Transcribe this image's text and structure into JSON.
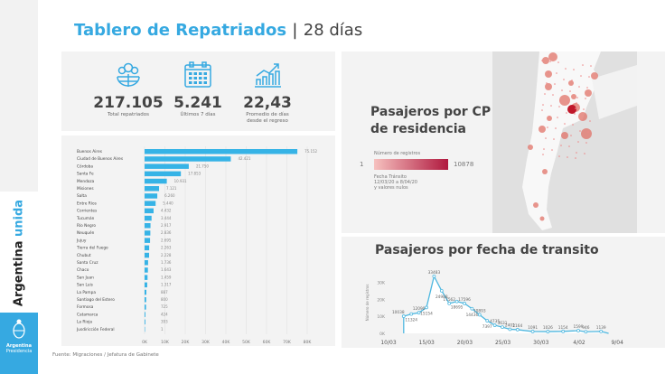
{
  "title": {
    "main": "Tablero de Repatriados",
    "separator": "|",
    "period": "28 días"
  },
  "brand": {
    "word1": "Argentina",
    "word2": "unida",
    "logo_line1": "Argentina",
    "logo_line2": "Presidencia"
  },
  "stats": [
    {
      "icon": "globe-people-icon",
      "value": "217.105",
      "label": "Total repatriados"
    },
    {
      "icon": "calendar-icon",
      "value": "5.241",
      "label": "Últimos 7 días"
    },
    {
      "icon": "growth-chart-icon",
      "value": "22,43",
      "label": "Promedio de días desde el regreso"
    }
  ],
  "map": {
    "title": "Pasajeros por CP de residencia",
    "legend_title": "Número de registros",
    "legend_min": "1",
    "legend_max": "10878",
    "legend_note1": "Fecha Tránsito",
    "legend_note2": "12/03/20 a 8/04/20",
    "legend_note3": "y valores nulos",
    "colors": {
      "low": "#f6c1bf",
      "high": "#b0183e"
    }
  },
  "footer": "Fuente: Migraciones / Jefatura de Gabinete",
  "chart_data": [
    {
      "type": "bar",
      "orientation": "horizontal",
      "color": "#36b3e6",
      "categories": [
        "Buenos Aires",
        "Ciudad de Buenos Aires",
        "Córdoba",
        "Santa Fe",
        "Mendoza",
        "Misiones",
        "Salta",
        "Entre Ríos",
        "Corrientes",
        "Tucumán",
        "Río Negro",
        "Neuquén",
        "Jujuy",
        "Tierra del Fuego",
        "Chubut",
        "Santa Cruz",
        "Chaco",
        "San Juan",
        "San Luis",
        "La Pampa",
        "Santiago del Estero",
        "Formosa",
        "Catamarca",
        "La Rioja",
        "Jusdiricción Federal"
      ],
      "values": [
        75152,
        42421,
        21750,
        17853,
        10931,
        7121,
        6260,
        5440,
        4432,
        3444,
        2917,
        2836,
        2695,
        2263,
        2228,
        1736,
        1643,
        1459,
        1317,
        887,
        800,
        725,
        424,
        393,
        1
      ],
      "labels": [
        "75.152",
        "42.421",
        "21.750",
        "17.853",
        "10.931",
        "7.121",
        "6.260",
        "5.440",
        "4.432",
        "3.444",
        "2.917",
        "2.836",
        "2.695",
        "2.263",
        "2.228",
        "1.736",
        "1.643",
        "1.459",
        "1.317",
        "887",
        "800",
        "725",
        "424",
        "393",
        "1"
      ],
      "xlim": [
        0,
        80000
      ],
      "xticks": [
        "0K",
        "10K",
        "20K",
        "30K",
        "40K",
        "50K",
        "60K",
        "70K",
        "80K"
      ],
      "grid": true
    },
    {
      "type": "area",
      "title": "Pasajeros por fecha de transito",
      "ylabel": "Número de registros",
      "color": "#4fb8e0",
      "x": [
        "12/03",
        "13/03",
        "14/03",
        "15/03",
        "16/03",
        "17/03",
        "18/03",
        "19/03",
        "20/03",
        "21/03",
        "22/03",
        "23/03",
        "24/03",
        "25/03",
        "26/03",
        "27/03",
        "29/03",
        "31/03",
        "2/04",
        "4/04",
        "5/04",
        "7/04",
        "8/04"
      ],
      "y": [
        10038,
        11324,
        12090,
        15154,
        33483,
        24988,
        17562,
        18695,
        17596,
        14436,
        10893,
        7397,
        4735,
        3631,
        2401,
        2164,
        1091,
        1026,
        1154,
        1599,
        946,
        1139,
        null
      ],
      "xticks": [
        "10/03",
        "15/03",
        "20/03",
        "25/03",
        "30/03",
        "4/02",
        "9/04"
      ],
      "yticks": [
        "0K",
        "10K",
        "20K",
        "30K"
      ],
      "ylim": [
        0,
        35000
      ]
    }
  ]
}
